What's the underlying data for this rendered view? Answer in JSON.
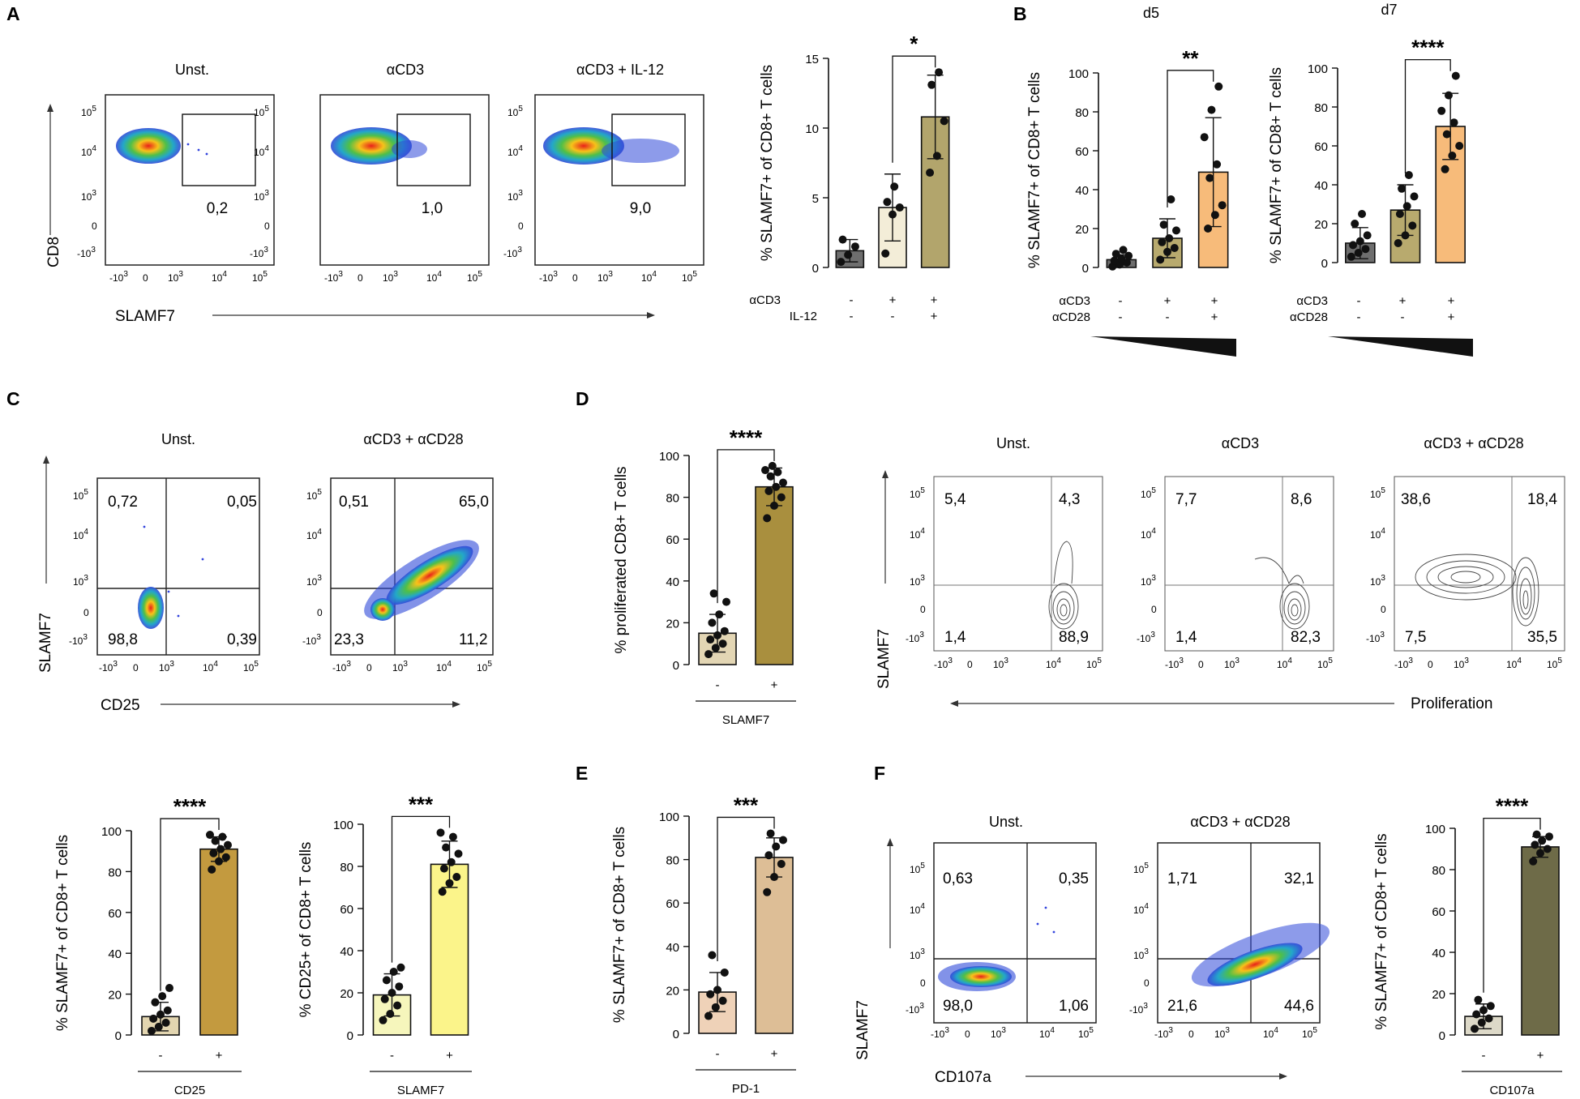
{
  "panel_labels": [
    "A",
    "B",
    "C",
    "D",
    "E",
    "F"
  ],
  "colors": {
    "unst": "#6e6e6e",
    "cd3_a": "#f3edd8",
    "il12": "#b2a56c",
    "cd3_b": "#b8aa6e",
    "cd28_b": "#f7bb7a",
    "c_neg": "#e2d5b0",
    "c_pos": "#c39a3f",
    "s_neg": "#f6f6bc",
    "s_pos": "#fbf48a",
    "d_neg": "#e3d6b4",
    "d_pos": "#a98f3e",
    "e_neg": "#efd2b8",
    "e_pos": "#ddbe96",
    "f_neg": "#ddd9c8",
    "f_pos": "#6e6b48"
  },
  "flow": {
    "A": {
      "titles": [
        "Unst.",
        "αCD3",
        "αCD3 + IL-12"
      ],
      "gate_values": [
        "0,2",
        "1,0",
        "9,0"
      ],
      "y_axis": "CD8",
      "x_axis": "SLAMF7"
    },
    "C": {
      "titles": [
        "Unst.",
        "αCD3 + αCD28"
      ],
      "quadrants": [
        [
          "0,72",
          "0,05",
          "98,8",
          "0,39"
        ],
        [
          "0,51",
          "65,0",
          "23,3",
          "11,2"
        ]
      ],
      "y_axis": "SLAMF7",
      "x_axis": "CD25"
    },
    "D": {
      "titles": [
        "Unst.",
        "αCD3",
        "αCD3 + αCD28"
      ],
      "quadrants": [
        [
          "5,4",
          "4,3",
          "1,4",
          "88,9"
        ],
        [
          "7,7",
          "8,6",
          "1,4",
          "82,3"
        ],
        [
          "38,6",
          "18,4",
          "7,5",
          "35,5"
        ]
      ],
      "y_axis": "SLAMF7",
      "x_axis": "Proliferation"
    },
    "F": {
      "titles": [
        "Unst.",
        "αCD3 + αCD28"
      ],
      "quadrants": [
        [
          "0,63",
          "0,35",
          "98,0",
          "1,06"
        ],
        [
          "1,71",
          "32,1",
          "21,6",
          "44,6"
        ]
      ],
      "y_axis": "SLAMF7",
      "x_axis": "CD107a"
    }
  },
  "row_labels": {
    "A": [
      "αCD3",
      "IL-12"
    ],
    "A_signs": [
      [
        "-",
        "+",
        "+"
      ],
      [
        "-",
        "-",
        "+"
      ]
    ],
    "B": [
      "αCD3",
      "αCD28"
    ],
    "B_signs": [
      [
        "-",
        "+",
        "+"
      ],
      [
        "-",
        "-",
        "+"
      ]
    ]
  },
  "chart_data": [
    {
      "id": "A",
      "type": "bar",
      "title": "",
      "ylabel": "% SLAMF7+ of CD8+ T cells",
      "ylim": [
        0,
        15
      ],
      "yticks": [
        0,
        5,
        10,
        15
      ],
      "categories": [
        "Unst.",
        "αCD3",
        "αCD3 + IL-12"
      ],
      "values": [
        1.2,
        4.3,
        10.8
      ],
      "sd": [
        0.8,
        2.4,
        3.0
      ],
      "points": [
        [
          0.4,
          0.9,
          1.5,
          2.0
        ],
        [
          1.0,
          3.8,
          4.3,
          4.7,
          5.8
        ],
        [
          6.8,
          8.0,
          10.5,
          13.1,
          14.0
        ]
      ],
      "significance": [
        {
          "from": 1,
          "to": 2,
          "label": "*"
        }
      ]
    },
    {
      "id": "B-d5",
      "type": "bar",
      "title": "d5",
      "ylabel": "% SLAMF7+ of CD8+ T cells",
      "ylim": [
        0,
        100
      ],
      "yticks": [
        0,
        20,
        40,
        60,
        80,
        100
      ],
      "categories": [
        "Unst.",
        "αCD3",
        "αCD3 + αCD28"
      ],
      "values": [
        4,
        15,
        49
      ],
      "sd": [
        2.5,
        10,
        28
      ],
      "points": [
        [
          0.5,
          1.5,
          2.5,
          3.5,
          4.5,
          6,
          7,
          9
        ],
        [
          4,
          8,
          10,
          13,
          15,
          19,
          22,
          35
        ],
        [
          20,
          27,
          32,
          46,
          53,
          67,
          81,
          93
        ]
      ],
      "significance": [
        {
          "from": 1,
          "to": 2,
          "label": "**"
        }
      ]
    },
    {
      "id": "B-d7",
      "type": "bar",
      "title": "d7",
      "ylabel": "% SLAMF7+ of CD8+ T cells",
      "ylim": [
        0,
        100
      ],
      "yticks": [
        0,
        20,
        40,
        60,
        80,
        100
      ],
      "categories": [
        "Unst.",
        "αCD3",
        "αCD3 + αCD28"
      ],
      "values": [
        10,
        27,
        70
      ],
      "sd": [
        8,
        13,
        17
      ],
      "points": [
        [
          3,
          5,
          7,
          9,
          11,
          14,
          20,
          25
        ],
        [
          10,
          14,
          19,
          25,
          29,
          34,
          38,
          45
        ],
        [
          48,
          55,
          60,
          66,
          72,
          78,
          86,
          96
        ]
      ],
      "significance": [
        {
          "from": 1,
          "to": 2,
          "label": "****"
        }
      ]
    },
    {
      "id": "C-CD25",
      "type": "bar",
      "title": "",
      "ylabel": "% SLAMF7+ of CD8+ T cells",
      "xlabel": "CD25",
      "ylim": [
        0,
        100
      ],
      "yticks": [
        0,
        20,
        40,
        60,
        80,
        100
      ],
      "categories": [
        "-",
        "+"
      ],
      "values": [
        9,
        91
      ],
      "sd": [
        7,
        6
      ],
      "points": [
        [
          2,
          4,
          6,
          8,
          10,
          12,
          16,
          19,
          23
        ],
        [
          81,
          85,
          87,
          89,
          91,
          93,
          95,
          97,
          98
        ]
      ],
      "significance": [
        {
          "from": 0,
          "to": 1,
          "label": "****"
        }
      ]
    },
    {
      "id": "C-SLAMF7",
      "type": "bar",
      "title": "",
      "ylabel": "% CD25+ of CD8+ T cells",
      "xlabel": "SLAMF7",
      "ylim": [
        0,
        100
      ],
      "yticks": [
        0,
        20,
        40,
        60,
        80,
        100
      ],
      "categories": [
        "-",
        "+"
      ],
      "values": [
        19,
        81
      ],
      "sd": [
        10,
        11
      ],
      "points": [
        [
          7,
          10,
          14,
          17,
          20,
          23,
          26,
          30,
          32
        ],
        [
          68,
          72,
          75,
          79,
          82,
          86,
          89,
          94,
          96
        ]
      ],
      "significance": [
        {
          "from": 0,
          "to": 1,
          "label": "***"
        }
      ]
    },
    {
      "id": "D",
      "type": "bar",
      "title": "",
      "ylabel": "% proliferated CD8+ T cells",
      "xlabel": "SLAMF7",
      "ylim": [
        0,
        100
      ],
      "yticks": [
        0,
        20,
        40,
        60,
        80,
        100
      ],
      "categories": [
        "-",
        "+"
      ],
      "values": [
        15,
        85
      ],
      "sd": [
        9,
        9
      ],
      "points": [
        [
          5,
          8,
          10,
          12,
          14,
          16,
          20,
          24,
          30,
          34
        ],
        [
          70,
          76,
          80,
          83,
          85,
          87,
          90,
          92,
          93,
          95
        ]
      ],
      "significance": [
        {
          "from": 0,
          "to": 1,
          "label": "****"
        }
      ]
    },
    {
      "id": "E",
      "type": "bar",
      "title": "",
      "ylabel": "% SLAMF7+ of CD8+ T cells",
      "xlabel": "PD-1",
      "ylim": [
        0,
        100
      ],
      "yticks": [
        0,
        20,
        40,
        60,
        80,
        100
      ],
      "categories": [
        "-",
        "+"
      ],
      "values": [
        19,
        81
      ],
      "sd": [
        9,
        9
      ],
      "points": [
        [
          8,
          12,
          15,
          18,
          20,
          28,
          36
        ],
        [
          65,
          72,
          78,
          82,
          86,
          89,
          92
        ]
      ],
      "significance": [
        {
          "from": 0,
          "to": 1,
          "label": "***"
        }
      ]
    },
    {
      "id": "F",
      "type": "bar",
      "title": "",
      "ylabel": "% SLAMF7+ of CD8+ T cells",
      "xlabel": "CD107a",
      "ylim": [
        0,
        100
      ],
      "yticks": [
        0,
        20,
        40,
        60,
        80,
        100
      ],
      "categories": [
        "-",
        "+"
      ],
      "values": [
        9,
        91
      ],
      "sd": [
        6,
        5
      ],
      "points": [
        [
          3,
          6,
          8,
          10,
          12,
          14,
          17
        ],
        [
          84,
          88,
          90,
          92,
          94,
          96,
          97
        ]
      ],
      "significance": [
        {
          "from": 0,
          "to": 1,
          "label": "****"
        }
      ]
    }
  ]
}
